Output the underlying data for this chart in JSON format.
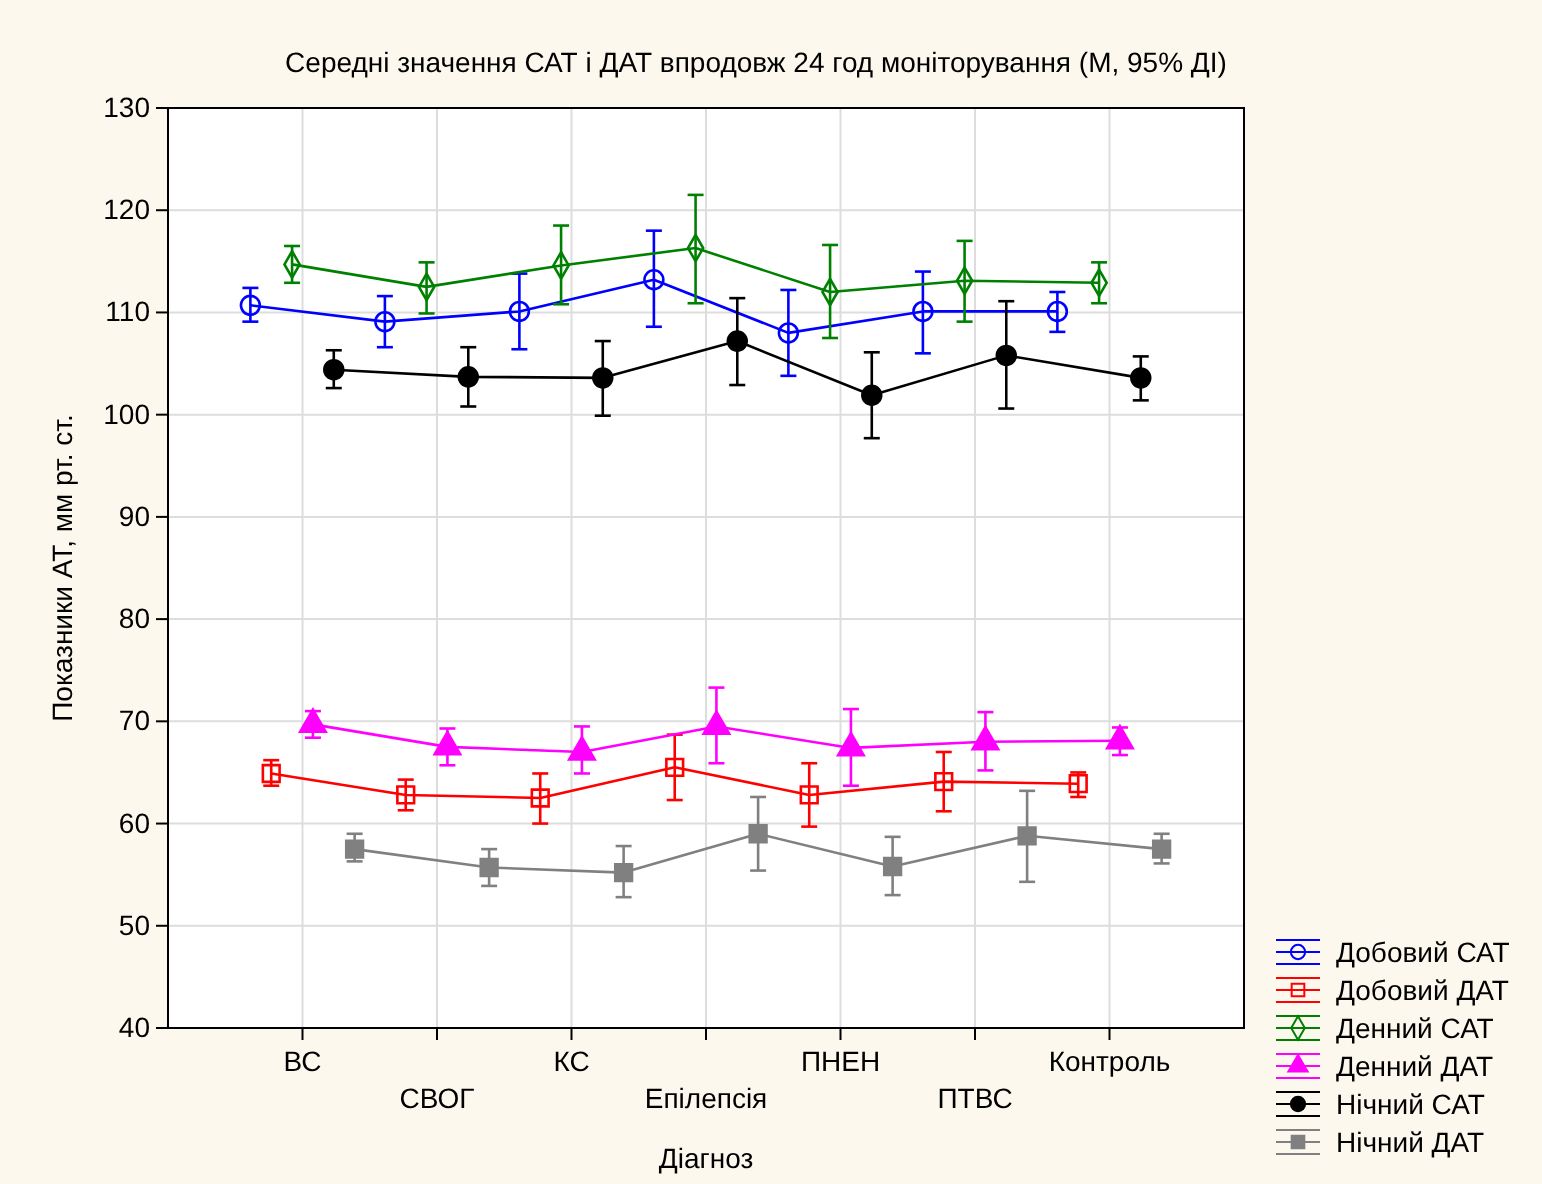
{
  "chart_data": {
    "type": "line",
    "title": "Середні значення САТ і ДАТ впродовж 24 год моніторування (М, 95% ДІ)",
    "xlabel": "Діагноз",
    "ylabel": "Показники АТ, мм рт. ст.",
    "categories": [
      "ВС",
      "СВОГ",
      "КС",
      "Епілепсія",
      "ПНЕН",
      "ПТВС",
      "Контроль"
    ],
    "ylim": [
      40,
      130
    ],
    "yticks": [
      40,
      50,
      60,
      70,
      80,
      90,
      100,
      110,
      120,
      130
    ],
    "grid": true,
    "legend": "right",
    "series": [
      {
        "name": "Добовий САТ",
        "color": "#0000ff",
        "marker": "circle",
        "values": [
          110.7,
          109.1,
          110.1,
          113.2,
          108.0,
          110.1,
          110.1
        ],
        "errors": [
          [
            109.1,
            112.4
          ],
          [
            106.6,
            111.6
          ],
          [
            106.4,
            113.8
          ],
          [
            108.6,
            118.0
          ],
          [
            103.8,
            112.2
          ],
          [
            106.0,
            114.0
          ],
          [
            108.1,
            112.0
          ]
        ]
      },
      {
        "name": "Добовий ДАТ",
        "color": "#ff0000",
        "marker": "square",
        "values": [
          64.9,
          62.8,
          62.5,
          65.5,
          62.8,
          64.1,
          63.9
        ],
        "errors": [
          [
            63.7,
            66.2
          ],
          [
            61.3,
            64.3
          ],
          [
            60.0,
            64.9
          ],
          [
            62.3,
            68.7
          ],
          [
            59.7,
            65.9
          ],
          [
            61.2,
            67.0
          ],
          [
            62.6,
            65.0
          ]
        ]
      },
      {
        "name": "Денний САТ",
        "color": "#008000",
        "marker": "diamond",
        "values": [
          114.7,
          112.5,
          114.6,
          116.3,
          112.0,
          113.1,
          112.9
        ],
        "errors": [
          [
            112.9,
            116.5
          ],
          [
            109.9,
            114.9
          ],
          [
            110.8,
            118.5
          ],
          [
            110.9,
            121.5
          ],
          [
            107.5,
            116.6
          ],
          [
            109.1,
            117.0
          ],
          [
            110.9,
            114.9
          ]
        ]
      },
      {
        "name": "Денний ДАТ",
        "color": "#ff00ff",
        "marker": "triangle",
        "values": [
          69.7,
          67.5,
          67.0,
          69.5,
          67.4,
          68.0,
          68.1
        ],
        "errors": [
          [
            68.4,
            71.0
          ],
          [
            65.7,
            69.3
          ],
          [
            64.9,
            69.5
          ],
          [
            65.9,
            73.3
          ],
          [
            63.7,
            71.2
          ],
          [
            65.2,
            70.9
          ],
          [
            66.7,
            69.4
          ]
        ]
      },
      {
        "name": "Нічний САТ",
        "color": "#000000",
        "marker": "circle",
        "values": [
          104.4,
          103.7,
          103.6,
          107.2,
          101.9,
          105.8,
          103.6
        ],
        "errors": [
          [
            102.6,
            106.3
          ],
          [
            100.8,
            106.6
          ],
          [
            99.9,
            107.2
          ],
          [
            102.9,
            111.4
          ],
          [
            97.7,
            106.1
          ],
          [
            100.6,
            111.1
          ],
          [
            101.4,
            105.7
          ]
        ]
      },
      {
        "name": "Нічний ДАТ",
        "color": "#808080",
        "marker": "square",
        "values": [
          57.5,
          55.7,
          55.2,
          59.0,
          55.8,
          58.8,
          57.5
        ],
        "errors": [
          [
            56.3,
            59.0
          ],
          [
            53.9,
            57.5
          ],
          [
            52.8,
            57.8
          ],
          [
            55.4,
            62.6
          ],
          [
            53.0,
            58.7
          ],
          [
            54.3,
            63.2
          ],
          [
            56.1,
            59.0
          ]
        ]
      }
    ]
  }
}
